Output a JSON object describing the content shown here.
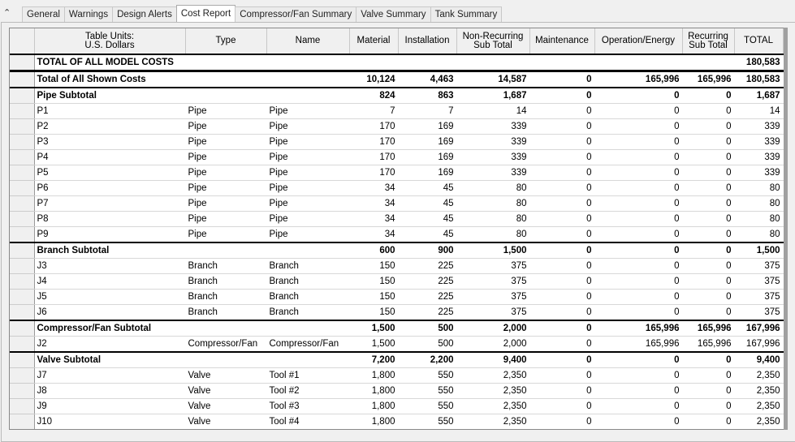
{
  "tabs": [
    "General",
    "Warnings",
    "Design Alerts",
    "Cost Report",
    "Compressor/Fan Summary",
    "Valve Summary",
    "Tank Summary"
  ],
  "active_tab": "Cost Report",
  "collapse_icon": "double-chevron-up-icon",
  "columns": [
    "Table Units:\nU.S. Dollars",
    "Type",
    "Name",
    "Material",
    "Installation",
    "Non-Recurring\nSub Total",
    "Maintenance",
    "Operation/Energy",
    "Recurring\nSub Total",
    "TOTAL"
  ],
  "rows": [
    {
      "label": "TOTAL OF ALL MODEL COSTS",
      "type": "",
      "name": "",
      "values": [
        "",
        "",
        "",
        "",
        "",
        "",
        "180,583"
      ],
      "bold": true
    },
    {
      "label": "Total of All Shown Costs",
      "type": "",
      "name": "",
      "values": [
        "10,124",
        "4,463",
        "14,587",
        "0",
        "165,996",
        "165,996",
        "180,583"
      ],
      "bold": true
    },
    {
      "label": "Pipe Subtotal",
      "type": "",
      "name": "",
      "values": [
        "824",
        "863",
        "1,687",
        "0",
        "0",
        "0",
        "1,687"
      ],
      "bold": true
    },
    {
      "label": "P1",
      "type": "Pipe",
      "name": "Pipe",
      "values": [
        "7",
        "7",
        "14",
        "0",
        "0",
        "0",
        "14"
      ]
    },
    {
      "label": "P2",
      "type": "Pipe",
      "name": "Pipe",
      "values": [
        "170",
        "169",
        "339",
        "0",
        "0",
        "0",
        "339"
      ]
    },
    {
      "label": "P3",
      "type": "Pipe",
      "name": "Pipe",
      "values": [
        "170",
        "169",
        "339",
        "0",
        "0",
        "0",
        "339"
      ]
    },
    {
      "label": "P4",
      "type": "Pipe",
      "name": "Pipe",
      "values": [
        "170",
        "169",
        "339",
        "0",
        "0",
        "0",
        "339"
      ]
    },
    {
      "label": "P5",
      "type": "Pipe",
      "name": "Pipe",
      "values": [
        "170",
        "169",
        "339",
        "0",
        "0",
        "0",
        "339"
      ]
    },
    {
      "label": "P6",
      "type": "Pipe",
      "name": "Pipe",
      "values": [
        "34",
        "45",
        "80",
        "0",
        "0",
        "0",
        "80"
      ]
    },
    {
      "label": "P7",
      "type": "Pipe",
      "name": "Pipe",
      "values": [
        "34",
        "45",
        "80",
        "0",
        "0",
        "0",
        "80"
      ]
    },
    {
      "label": "P8",
      "type": "Pipe",
      "name": "Pipe",
      "values": [
        "34",
        "45",
        "80",
        "0",
        "0",
        "0",
        "80"
      ]
    },
    {
      "label": "P9",
      "type": "Pipe",
      "name": "Pipe",
      "values": [
        "34",
        "45",
        "80",
        "0",
        "0",
        "0",
        "80"
      ]
    },
    {
      "label": "Branch Subtotal",
      "type": "",
      "name": "",
      "values": [
        "600",
        "900",
        "1,500",
        "0",
        "0",
        "0",
        "1,500"
      ],
      "bold": true
    },
    {
      "label": "J3",
      "type": "Branch",
      "name": "Branch",
      "values": [
        "150",
        "225",
        "375",
        "0",
        "0",
        "0",
        "375"
      ]
    },
    {
      "label": "J4",
      "type": "Branch",
      "name": "Branch",
      "values": [
        "150",
        "225",
        "375",
        "0",
        "0",
        "0",
        "375"
      ]
    },
    {
      "label": "J5",
      "type": "Branch",
      "name": "Branch",
      "values": [
        "150",
        "225",
        "375",
        "0",
        "0",
        "0",
        "375"
      ]
    },
    {
      "label": "J6",
      "type": "Branch",
      "name": "Branch",
      "values": [
        "150",
        "225",
        "375",
        "0",
        "0",
        "0",
        "375"
      ]
    },
    {
      "label": "Compressor/Fan Subtotal",
      "type": "",
      "name": "",
      "values": [
        "1,500",
        "500",
        "2,000",
        "0",
        "165,996",
        "165,996",
        "167,996"
      ],
      "bold": true
    },
    {
      "label": "J2",
      "type": "Compressor/Fan",
      "name": "Compressor/Fan",
      "values": [
        "1,500",
        "500",
        "2,000",
        "0",
        "165,996",
        "165,996",
        "167,996"
      ]
    },
    {
      "label": "Valve Subtotal",
      "type": "",
      "name": "",
      "values": [
        "7,200",
        "2,200",
        "9,400",
        "0",
        "0",
        "0",
        "9,400"
      ],
      "bold": true
    },
    {
      "label": "J7",
      "type": "Valve",
      "name": "Tool #1",
      "values": [
        "1,800",
        "550",
        "2,350",
        "0",
        "0",
        "0",
        "2,350"
      ]
    },
    {
      "label": "J8",
      "type": "Valve",
      "name": "Tool #2",
      "values": [
        "1,800",
        "550",
        "2,350",
        "0",
        "0",
        "0",
        "2,350"
      ]
    },
    {
      "label": "J9",
      "type": "Valve",
      "name": "Tool #3",
      "values": [
        "1,800",
        "550",
        "2,350",
        "0",
        "0",
        "0",
        "2,350"
      ]
    },
    {
      "label": "J10",
      "type": "Valve",
      "name": "Tool #4",
      "values": [
        "1,800",
        "550",
        "2,350",
        "0",
        "0",
        "0",
        "2,350"
      ]
    }
  ]
}
